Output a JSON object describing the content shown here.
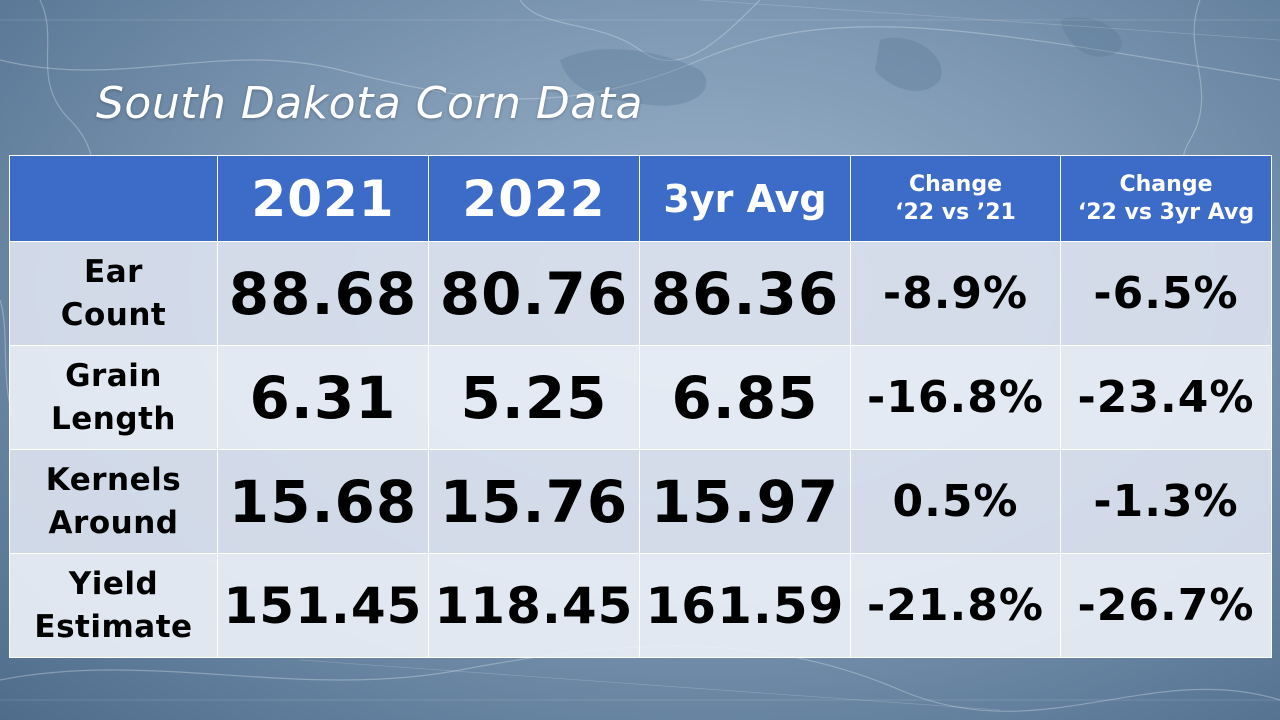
{
  "title": "South Dakota Corn Data",
  "headers": {
    "corner": "",
    "col_2021": "2021",
    "col_2022": "2022",
    "col_avg": "3yr Avg",
    "col_chg1_line1": "Change",
    "col_chg1_line2": "‘22 vs ’21",
    "col_chg2_line1": "Change",
    "col_chg2_line2": "‘22 vs 3yr Avg"
  },
  "rows": [
    {
      "label1": "Ear",
      "label2": "Count",
      "v2021": "88.68",
      "v2022": "80.76",
      "avg": "86.36",
      "chg1": "-8.9%",
      "chg2": "-6.5%"
    },
    {
      "label1": "Grain",
      "label2": "Length",
      "v2021": "6.31",
      "v2022": "5.25",
      "avg": "6.85",
      "chg1": "-16.8%",
      "chg2": "-23.4%"
    },
    {
      "label1": "Kernels",
      "label2": "Around",
      "v2021": "15.68",
      "v2022": "15.76",
      "avg": "15.97",
      "chg1": "0.5%",
      "chg2": "-1.3%"
    },
    {
      "label1": "Yield",
      "label2": "Estimate",
      "v2021": "151.45",
      "v2022": "118.45",
      "avg": "161.59",
      "chg1": "-21.8%",
      "chg2": "-26.7%"
    }
  ],
  "colors": {
    "header_bg": "#3c6cc7",
    "header_text": "#ffffff",
    "cell_text": "#000000"
  }
}
